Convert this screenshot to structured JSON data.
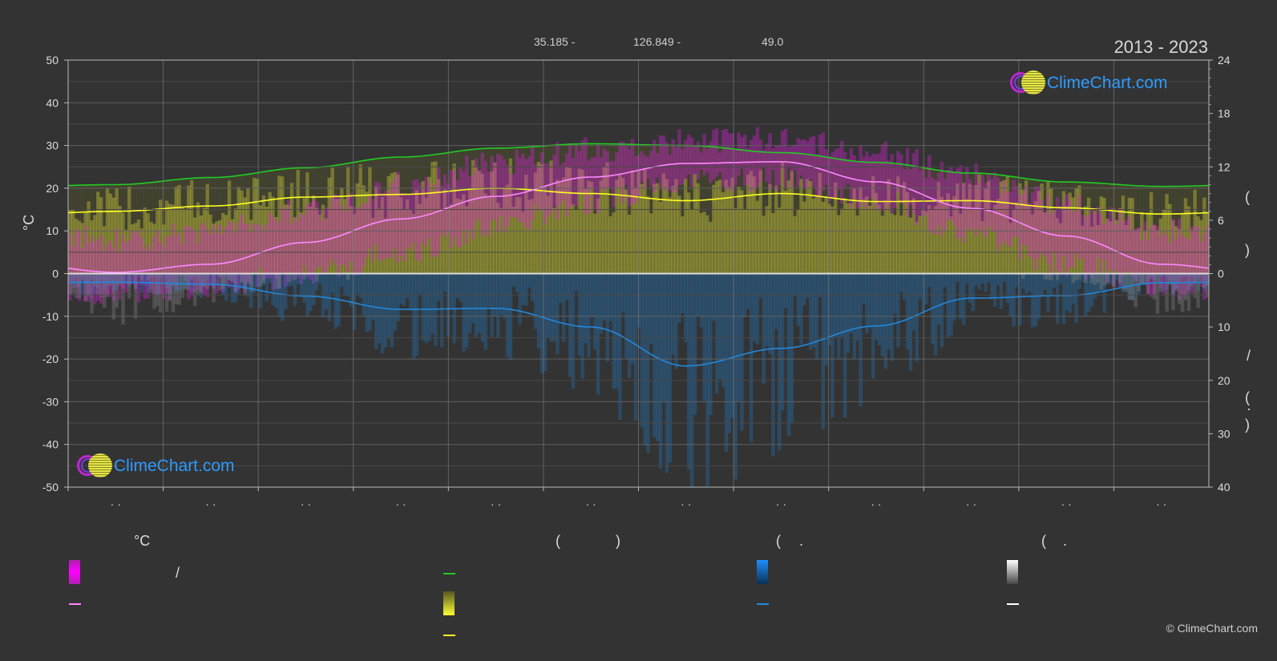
{
  "header": {
    "latitude": "35.185 -",
    "longitude": "126.849 -",
    "elevation": "49.0",
    "year_range": "2013 - 2023"
  },
  "branding": {
    "logo_text": "ClimeChart.com",
    "copyright": "© ClimeChart.com"
  },
  "axes": {
    "left_unit": "°C",
    "right_upper_glyphs": [
      "(",
      ")"
    ],
    "right_lower_glyphs": [
      "/",
      "(",
      "·",
      ")"
    ]
  },
  "legend": {
    "temperature_heading": "°C",
    "daylight_heading_glyphs": [
      "(",
      ")"
    ],
    "rain_heading_glyphs": [
      "(",
      "."
    ],
    "snow_heading_glyphs": [
      "(",
      "."
    ],
    "temp_range_separator": "/"
  },
  "colors": {
    "background": "#333333",
    "grid": "#555555",
    "temperature_range": "#e020e0",
    "temperature_avg": "#ff88ff",
    "daylight": "#22cc22",
    "sunshine_fill": "#cccc33",
    "sunshine_avg": "#ffff22",
    "rain": "#2288dd",
    "snow": "#ffffff"
  },
  "chart_data": {
    "type": "area",
    "title": "",
    "x_tick_labels": [
      "· ·",
      "· ·",
      "· ·",
      "· ·",
      "· ·",
      "· ·",
      "· ·",
      "· ·",
      "· ·",
      "· ·",
      "· ·",
      "· ·"
    ],
    "ylim_left": [
      -50,
      50
    ],
    "yticks_left": [
      50,
      40,
      30,
      20,
      10,
      0,
      -10,
      -20,
      -30,
      -40,
      -50
    ],
    "right_upper_axis": {
      "ticks": [
        24,
        18,
        12,
        6,
        0
      ],
      "range": [
        0,
        24
      ]
    },
    "right_lower_axis": {
      "ticks": [
        10,
        20,
        30,
        40
      ],
      "range": [
        0,
        40
      ]
    },
    "grid": true,
    "series": [
      {
        "key": "daylight",
        "axis": "right_upper",
        "values": [
          10.0,
          10.8,
          11.9,
          13.1,
          14.1,
          14.6,
          14.4,
          13.6,
          12.5,
          11.3,
          10.3,
          9.8
        ]
      },
      {
        "key": "sunshine_avg",
        "axis": "right_upper",
        "values": [
          7.0,
          7.6,
          8.6,
          8.9,
          9.6,
          9.0,
          8.2,
          9.0,
          8.1,
          8.2,
          7.4,
          6.7
        ]
      },
      {
        "key": "temp_avg",
        "axis": "left",
        "values": [
          0.3,
          2.2,
          7.3,
          12.8,
          18.1,
          22.6,
          25.8,
          26.2,
          21.5,
          15.3,
          8.8,
          2.2
        ]
      },
      {
        "key": "temp_max",
        "axis": "left",
        "values": [
          8,
          10,
          15,
          21,
          26,
          29,
          31,
          32,
          28,
          23,
          16,
          10
        ]
      },
      {
        "key": "temp_min",
        "axis": "left",
        "values": [
          -5,
          -3,
          0,
          5,
          11,
          17,
          22,
          22,
          17,
          9,
          2,
          -3
        ]
      },
      {
        "key": "rain_avg",
        "axis": "right_lower",
        "values": [
          1.6,
          2.0,
          4.2,
          6.7,
          6.5,
          10.0,
          17.3,
          14.0,
          9.8,
          4.6,
          4.1,
          1.7
        ]
      },
      {
        "key": "snow_avg",
        "axis": "right_lower",
        "values": [
          0.5,
          0.3,
          0.1,
          0,
          0,
          0,
          0,
          0,
          0,
          0,
          0.1,
          0.4
        ]
      }
    ]
  }
}
